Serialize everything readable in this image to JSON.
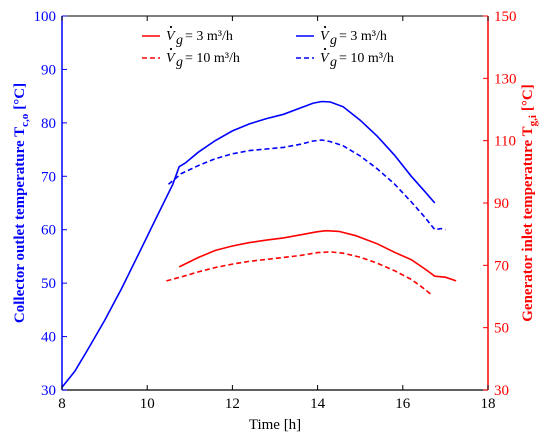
{
  "chart_data": {
    "type": "line",
    "title": "",
    "xlabel": "Time [h]",
    "ylabel_left": "Collector outlet temperature T",
    "ylabel_left_sub": "c,o",
    "ylabel_left_unit": "[°C]",
    "ylabel_right": "Generator inlet temperature T",
    "ylabel_right_sub": "g,i",
    "ylabel_right_unit": "[°C]",
    "xlim": [
      8,
      18
    ],
    "ylim_left": [
      30,
      100
    ],
    "ylim_right": [
      30,
      150
    ],
    "x_ticks": [
      "8",
      "10",
      "12",
      "14",
      "16",
      "18"
    ],
    "y_left_ticks": [
      "30",
      "40",
      "50",
      "60",
      "70",
      "80",
      "90",
      "100"
    ],
    "y_right_ticks": [
      "30",
      "50",
      "70",
      "90",
      "110",
      "130",
      "150"
    ],
    "grid": false,
    "colors": {
      "left_axis": "#0000ff",
      "right_axis": "#ff0000",
      "axis": "#000000"
    },
    "legend": [
      {
        "label": "= 3 m³/h",
        "color": "#ff0000",
        "dash": false,
        "position": "top-left"
      },
      {
        "label": "= 10 m³/h",
        "color": "#ff0000",
        "dash": true,
        "position": "top-left"
      },
      {
        "label": "= 3 m³/h",
        "color": "#0000ff",
        "dash": false,
        "position": "top-center"
      },
      {
        "label": "= 10 m³/h",
        "color": "#0000ff",
        "dash": true,
        "position": "top-center"
      }
    ],
    "legend_symbol": "V",
    "legend_symbol_sub": "g",
    "series": [
      {
        "axis": "left",
        "color": "#0000ff",
        "dash": false,
        "x": [
          8.0,
          8.3,
          8.6,
          9.0,
          9.4,
          9.8,
          10.2,
          10.6,
          10.75,
          10.9,
          11.2,
          11.6,
          12.0,
          12.4,
          12.8,
          13.2,
          13.6,
          13.9,
          14.1,
          14.3,
          14.6,
          15.0,
          15.4,
          15.8,
          16.2,
          16.5,
          16.75
        ],
        "y": [
          30.5,
          33.5,
          37.5,
          43.0,
          49.0,
          55.5,
          62.0,
          68.5,
          71.8,
          72.5,
          74.5,
          76.7,
          78.5,
          79.8,
          80.8,
          81.6,
          82.8,
          83.7,
          84.0,
          83.9,
          83.0,
          80.5,
          77.5,
          74.0,
          70.0,
          67.3,
          65.0
        ]
      },
      {
        "axis": "left",
        "color": "#0000ff",
        "dash": true,
        "x": [
          10.5,
          10.8,
          11.2,
          11.6,
          12.0,
          12.4,
          12.8,
          13.2,
          13.6,
          13.9,
          14.1,
          14.3,
          14.6,
          15.0,
          15.4,
          15.8,
          16.2,
          16.5,
          16.75,
          16.9,
          17.0
        ],
        "y": [
          68.5,
          70.5,
          72.0,
          73.3,
          74.2,
          74.8,
          75.1,
          75.4,
          76.0,
          76.6,
          76.8,
          76.5,
          75.7,
          73.8,
          71.4,
          68.6,
          65.2,
          62.5,
          60.0,
          60.2,
          60.0
        ]
      },
      {
        "axis": "right",
        "color": "#ff0000",
        "dash": false,
        "x": [
          10.75,
          11.2,
          11.6,
          12.0,
          12.4,
          12.8,
          13.2,
          13.6,
          14.0,
          14.2,
          14.5,
          14.9,
          15.4,
          15.8,
          16.2,
          16.5,
          16.75,
          17.0,
          17.25
        ],
        "y": [
          69.5,
          72.5,
          74.8,
          76.2,
          77.3,
          78.1,
          78.8,
          79.8,
          80.8,
          81.1,
          80.9,
          79.5,
          76.9,
          74.2,
          71.8,
          69.0,
          66.5,
          66.2,
          65.0
        ]
      },
      {
        "axis": "right",
        "color": "#ff0000",
        "dash": true,
        "x": [
          10.45,
          10.8,
          11.2,
          11.6,
          12.0,
          12.4,
          12.8,
          13.2,
          13.6,
          14.0,
          14.3,
          14.6,
          15.0,
          15.4,
          15.8,
          16.2,
          16.5,
          16.65
        ],
        "y": [
          65.0,
          66.3,
          67.9,
          69.3,
          70.4,
          71.3,
          71.9,
          72.5,
          73.2,
          74.1,
          74.3,
          73.9,
          72.6,
          70.7,
          68.3,
          65.5,
          62.5,
          60.8
        ]
      }
    ]
  }
}
